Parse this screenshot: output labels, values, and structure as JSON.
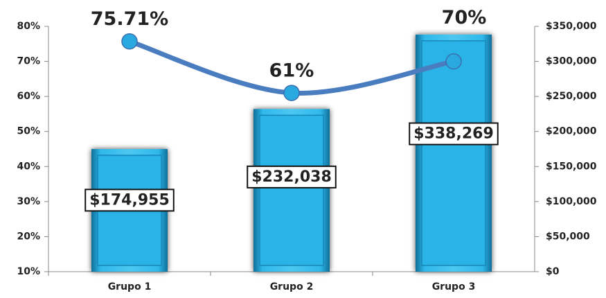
{
  "chart_data": {
    "type": "combo",
    "categories": [
      "Grupo 1",
      "Grupo 2",
      "Grupo 3"
    ],
    "series": [
      {
        "type": "bar",
        "axis": "y2",
        "color": "#29b3e6",
        "values": [
          174955,
          232038,
          338269
        ],
        "value_labels": [
          "$174,955",
          "$232,038",
          "$338,269"
        ]
      },
      {
        "type": "line",
        "color": "#4a7cc0",
        "values": [
          75.71,
          61,
          70
        ],
        "value_labels": [
          "75.71%",
          "61%",
          "70%"
        ]
      }
    ],
    "ylim": [
      10,
      80
    ],
    "yticks": [
      {
        "value": 10,
        "label": "10%"
      },
      {
        "value": 20,
        "label": "20%"
      },
      {
        "value": 30,
        "label": "30%"
      },
      {
        "value": 40,
        "label": "40%"
      },
      {
        "value": 50,
        "label": "50%"
      },
      {
        "value": 60,
        "label": "60%"
      },
      {
        "value": 70,
        "label": "70%"
      },
      {
        "value": 80,
        "label": "80%"
      }
    ],
    "y2lim": [
      0,
      350000
    ],
    "y2ticks": [
      {
        "value": 0,
        "label": "$0"
      },
      {
        "value": 50000,
        "label": "$50,000"
      },
      {
        "value": 100000,
        "label": "$100,000"
      },
      {
        "value": 150000,
        "label": "$150,000"
      },
      {
        "value": 200000,
        "label": "$200,000"
      },
      {
        "value": 250000,
        "label": "$250,000"
      },
      {
        "value": 300000,
        "label": "$300,000"
      },
      {
        "value": 350000,
        "label": "$350,000"
      }
    ],
    "grid": false
  }
}
